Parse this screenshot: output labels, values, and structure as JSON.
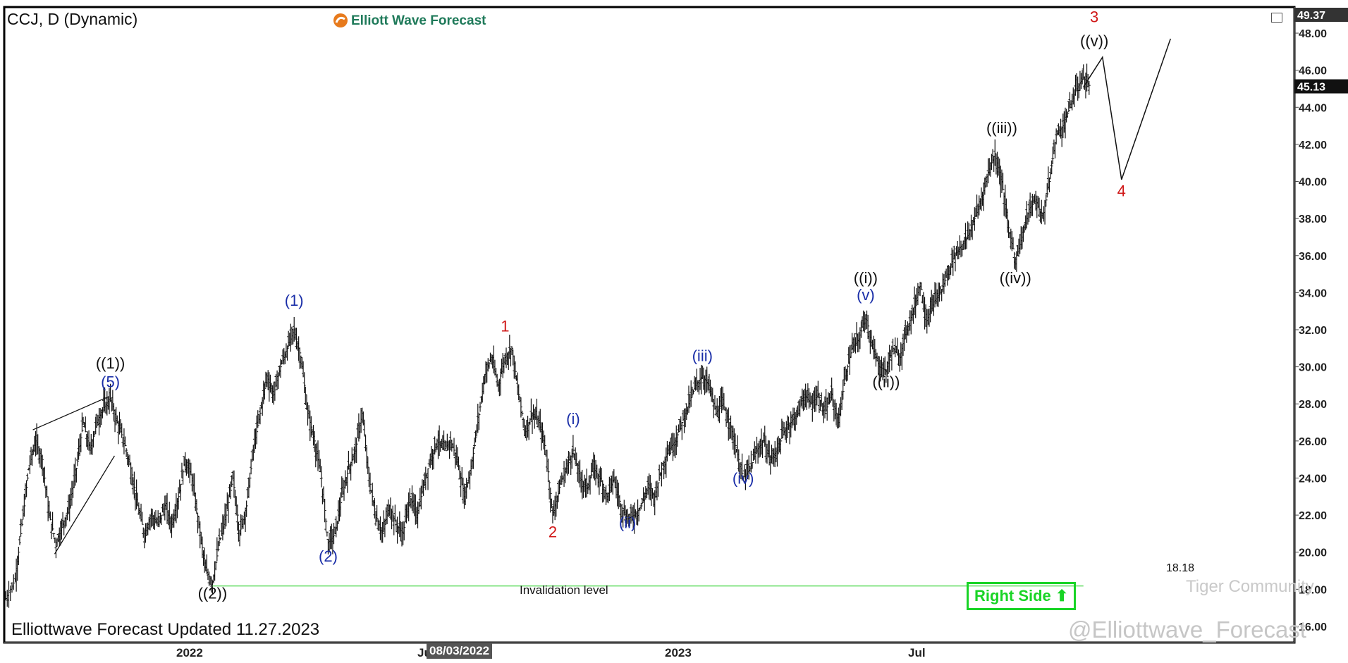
{
  "header": {
    "symbol": "CCJ, D (Dynamic)",
    "brand": "Elliott Wave Forecast"
  },
  "footer": {
    "updated": "Elliottwave Forecast Updated 11.27.2023",
    "watermark": "@Elliottwave_Forecast",
    "community": "Tiger Community",
    "badge": "Right Side",
    "date_highlight": "08/03/2022"
  },
  "chart_data": {
    "type": "ohlc-bar",
    "symbol": "CCJ",
    "timeframe": "D",
    "y_axis": {
      "ticks": [
        16,
        18,
        20,
        22,
        24,
        26,
        28,
        30,
        32,
        34,
        36,
        38,
        40,
        42,
        44,
        46,
        48
      ],
      "range": [
        15.2,
        49.37
      ],
      "top_label": "49.37",
      "last_price": 45.13,
      "last_price_label": "45.13"
    },
    "x_axis": {
      "labels": [
        "2022",
        "Ju",
        "2023",
        "Jul"
      ]
    },
    "price_path": [
      [
        0,
        17.5
      ],
      [
        0.35,
        18.5
      ],
      [
        0.6,
        21.5
      ],
      [
        0.85,
        24.5
      ],
      [
        1.1,
        26.0
      ],
      [
        1.35,
        25.0
      ],
      [
        1.6,
        22.0
      ],
      [
        1.85,
        20.5
      ],
      [
        2.1,
        21.5
      ],
      [
        2.35,
        22.5
      ],
      [
        2.6,
        24.5
      ],
      [
        2.85,
        27.0
      ],
      [
        3.1,
        25.5
      ],
      [
        3.35,
        27.0
      ],
      [
        3.6,
        27.8
      ],
      [
        3.85,
        28.3
      ],
      [
        4.1,
        27.0
      ],
      [
        4.35,
        26.0
      ],
      [
        4.6,
        24.5
      ],
      [
        4.85,
        22.5
      ],
      [
        5.1,
        21.0
      ],
      [
        5.35,
        22.0
      ],
      [
        5.6,
        21.5
      ],
      [
        5.85,
        22.5
      ],
      [
        6.1,
        21.5
      ],
      [
        6.35,
        23.0
      ],
      [
        6.6,
        25.0
      ],
      [
        6.85,
        24.0
      ],
      [
        7.1,
        21.5
      ],
      [
        7.35,
        19.0
      ],
      [
        7.6,
        18.4
      ],
      [
        7.85,
        20.5
      ],
      [
        8.1,
        22.0
      ],
      [
        8.35,
        24.0
      ],
      [
        8.6,
        21.0
      ],
      [
        8.85,
        22.5
      ],
      [
        9.1,
        25.5
      ],
      [
        9.35,
        27.5
      ],
      [
        9.6,
        29.5
      ],
      [
        9.85,
        28.5
      ],
      [
        10.1,
        30.0
      ],
      [
        10.35,
        31.0
      ],
      [
        10.6,
        32.0
      ],
      [
        10.85,
        30.5
      ],
      [
        11.1,
        27.5
      ],
      [
        11.35,
        26.0
      ],
      [
        11.6,
        24.0
      ],
      [
        11.85,
        20.5
      ],
      [
        12.1,
        21.0
      ],
      [
        12.35,
        23.0
      ],
      [
        12.6,
        24.5
      ],
      [
        12.85,
        25.5
      ],
      [
        13.1,
        27.5
      ],
      [
        13.35,
        24.0
      ],
      [
        13.6,
        22.0
      ],
      [
        13.85,
        21.0
      ],
      [
        14.1,
        22.5
      ],
      [
        14.35,
        21.5
      ],
      [
        14.6,
        21.0
      ],
      [
        14.85,
        23.0
      ],
      [
        15.1,
        22.0
      ],
      [
        15.35,
        23.5
      ],
      [
        15.6,
        25.0
      ],
      [
        15.85,
        26.0
      ],
      [
        16.1,
        25.5
      ],
      [
        16.35,
        26.0
      ],
      [
        16.6,
        25.0
      ],
      [
        16.85,
        23.0
      ],
      [
        17.1,
        24.5
      ],
      [
        17.35,
        27.0
      ],
      [
        17.6,
        29.5
      ],
      [
        17.85,
        30.5
      ],
      [
        18.1,
        29.0
      ],
      [
        18.35,
        30.5
      ],
      [
        18.6,
        31.0
      ],
      [
        18.85,
        28.5
      ],
      [
        19.1,
        26.5
      ],
      [
        19.35,
        27.5
      ],
      [
        19.6,
        27.0
      ],
      [
        19.85,
        25.5
      ],
      [
        20.1,
        22.0
      ],
      [
        20.35,
        23.5
      ],
      [
        20.6,
        24.5
      ],
      [
        20.85,
        25.5
      ],
      [
        21.1,
        24.0
      ],
      [
        21.35,
        23.5
      ],
      [
        21.6,
        24.5
      ],
      [
        21.85,
        24.0
      ],
      [
        22.1,
        23.0
      ],
      [
        22.35,
        24.0
      ],
      [
        22.6,
        22.5
      ],
      [
        22.85,
        21.8
      ],
      [
        23.1,
        22.0
      ],
      [
        23.35,
        22.5
      ],
      [
        23.6,
        23.5
      ],
      [
        23.85,
        23.0
      ],
      [
        24.1,
        24.5
      ],
      [
        24.35,
        25.5
      ],
      [
        24.6,
        26.0
      ],
      [
        24.85,
        27.0
      ],
      [
        25.1,
        28.0
      ],
      [
        25.35,
        29.0
      ],
      [
        25.6,
        29.5
      ],
      [
        25.85,
        29.0
      ],
      [
        26.1,
        27.5
      ],
      [
        26.35,
        28.0
      ],
      [
        26.6,
        27.0
      ],
      [
        26.85,
        25.5
      ],
      [
        27.1,
        24.0
      ],
      [
        27.35,
        24.5
      ],
      [
        27.6,
        25.5
      ],
      [
        27.85,
        26.0
      ],
      [
        28.1,
        25.0
      ],
      [
        28.35,
        25.5
      ],
      [
        28.6,
        26.5
      ],
      [
        28.85,
        27.0
      ],
      [
        29.1,
        27.5
      ],
      [
        29.35,
        28.5
      ],
      [
        29.6,
        28.0
      ],
      [
        29.85,
        28.5
      ],
      [
        30.1,
        27.5
      ],
      [
        30.35,
        28.5
      ],
      [
        30.6,
        27.0
      ],
      [
        30.85,
        29.5
      ],
      [
        31.1,
        31.0
      ],
      [
        31.35,
        31.5
      ],
      [
        31.6,
        32.8
      ],
      [
        31.85,
        31.0
      ],
      [
        32.1,
        30.0
      ],
      [
        32.35,
        29.8
      ],
      [
        32.6,
        31.0
      ],
      [
        32.85,
        30.5
      ],
      [
        33.1,
        32.0
      ],
      [
        33.35,
        33.0
      ],
      [
        33.6,
        34.5
      ],
      [
        33.85,
        32.5
      ],
      [
        34.1,
        33.5
      ],
      [
        34.35,
        34.0
      ],
      [
        34.6,
        35.0
      ],
      [
        34.85,
        36.0
      ],
      [
        35.1,
        36.5
      ],
      [
        35.35,
        37.0
      ],
      [
        35.6,
        38.0
      ],
      [
        35.85,
        39.0
      ],
      [
        36.1,
        40.5
      ],
      [
        36.35,
        41.5
      ],
      [
        36.6,
        40.0
      ],
      [
        36.85,
        37.5
      ],
      [
        37.1,
        35.8
      ],
      [
        37.35,
        37.0
      ],
      [
        37.6,
        38.5
      ],
      [
        37.85,
        39.0
      ],
      [
        38.1,
        38.0
      ],
      [
        38.35,
        40.0
      ],
      [
        38.6,
        42.5
      ],
      [
        38.85,
        43.0
      ],
      [
        39.1,
        44.0
      ],
      [
        39.35,
        45.0
      ],
      [
        39.6,
        45.6
      ],
      [
        39.85,
        45.1
      ]
    ],
    "wave_labels": [
      {
        "text": "((1))",
        "x": 3.85,
        "y": 29.9,
        "color": "#111111"
      },
      {
        "text": "(5)",
        "x": 3.85,
        "y": 28.9,
        "color": "#1a2ea8"
      },
      {
        "text": "((2))",
        "x": 7.6,
        "y": 17.5,
        "color": "#111111"
      },
      {
        "text": "(1)",
        "x": 10.6,
        "y": 33.3,
        "color": "#1a2ea8"
      },
      {
        "text": "(2)",
        "x": 11.85,
        "y": 19.5,
        "color": "#1a2ea8"
      },
      {
        "text": "1",
        "x": 18.35,
        "y": 31.9,
        "color": "#d01818"
      },
      {
        "text": "2",
        "x": 20.1,
        "y": 20.8,
        "color": "#d01818"
      },
      {
        "text": "(i)",
        "x": 20.85,
        "y": 26.9,
        "color": "#1a2ea8"
      },
      {
        "text": "(ii)",
        "x": 22.85,
        "y": 21.3,
        "color": "#1a2ea8"
      },
      {
        "text": "(iii)",
        "x": 25.6,
        "y": 30.3,
        "color": "#1a2ea8"
      },
      {
        "text": "(iv)",
        "x": 27.1,
        "y": 23.7,
        "color": "#1a2ea8"
      },
      {
        "text": "((i))",
        "x": 31.6,
        "y": 34.5,
        "color": "#111111"
      },
      {
        "text": "(v)",
        "x": 31.6,
        "y": 33.6,
        "color": "#1a2ea8"
      },
      {
        "text": "((ii))",
        "x": 32.35,
        "y": 28.9,
        "color": "#111111"
      },
      {
        "text": "((iii))",
        "x": 36.6,
        "y": 42.6,
        "color": "#111111"
      },
      {
        "text": "((iv))",
        "x": 37.1,
        "y": 34.5,
        "color": "#111111"
      },
      {
        "text": "3",
        "x": 40.0,
        "y": 48.6,
        "color": "#d01818"
      },
      {
        "text": "((v))",
        "x": 40.0,
        "y": 47.3,
        "color": "#111111"
      },
      {
        "text": "4",
        "x": 41.0,
        "y": 39.2,
        "color": "#d01818"
      }
    ],
    "projection": [
      [
        39.6,
        45.1
      ],
      [
        40.3,
        46.7
      ],
      [
        41.0,
        40.1
      ],
      [
        42.8,
        47.7
      ]
    ],
    "wedge": {
      "upper": [
        [
          1.0,
          26.6
        ],
        [
          3.8,
          28.4
        ]
      ],
      "lower": [
        [
          1.8,
          19.9
        ],
        [
          4.0,
          25.2
        ]
      ]
    },
    "invalidation": {
      "value": 18.18,
      "label": "18.18",
      "text": "Invalidation level",
      "color": "#66dd66"
    },
    "colors": {
      "bars": "#111111",
      "wave_blue": "#1a2ea8",
      "wave_red": "#d01818",
      "badge_green": "#19d426"
    }
  }
}
